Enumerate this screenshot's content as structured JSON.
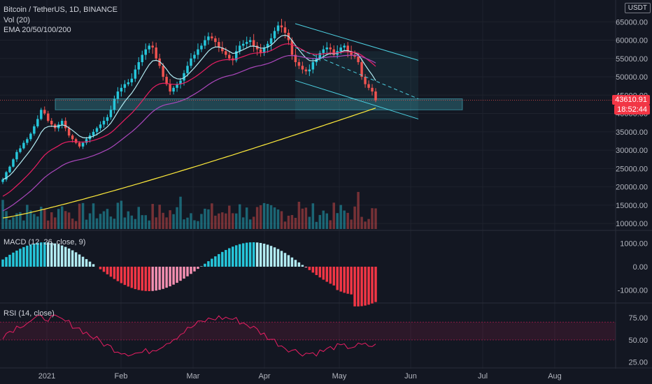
{
  "header": {
    "symbol": "Bitcoin / TetherUS, 1D, BINANCE",
    "vol": "Vol (20)",
    "ema": "EMA 20/50/100/200",
    "macd": "MACD (12, 26, close, 9)",
    "rsi": "RSI (14, close)",
    "currency": "USDT"
  },
  "price_tag": {
    "value": "43610.91",
    "countdown": "18:52:44"
  },
  "colors": {
    "background": "#131722",
    "up": "#26c6da",
    "down": "#ef5350",
    "ema20": "#b2ebf2",
    "ema50": "#e91e63",
    "ema100": "#ab47bc",
    "ema200": "#ffeb3b",
    "channel": "#4dd0e1",
    "rsi": "#e91e63"
  },
  "chart_data": [
    {
      "type": "candlestick",
      "title": "Bitcoin / TetherUS, 1D, BINANCE",
      "x_ticks": [
        "2021",
        "Feb",
        "Mar",
        "Apr",
        "May",
        "Jun",
        "Jul",
        "Aug"
      ],
      "y_ticks": [
        "65000.00",
        "60000.00",
        "55000.00",
        "50000.00",
        "45000.00",
        "40000.00",
        "35000.00",
        "30000.00",
        "25000.00",
        "20000.00",
        "15000.00",
        "10000.00"
      ],
      "ylim": [
        8500,
        70000
      ],
      "closes": [
        22000,
        24000,
        25500,
        27500,
        29500,
        30500,
        32000,
        33000,
        34500,
        36500,
        38500,
        41000,
        40000,
        38000,
        37000,
        36000,
        37000,
        38000,
        36000,
        34000,
        33000,
        32000,
        31000,
        32000,
        33000,
        34000,
        35000,
        36000,
        37000,
        38000,
        39000,
        41000,
        44000,
        46000,
        47000,
        48000,
        48500,
        49500,
        52000,
        54000,
        56000,
        57500,
        58500,
        58000,
        55000,
        53000,
        50000,
        48000,
        46000,
        47000,
        48000,
        49000,
        51000,
        53000,
        55000,
        56000,
        57500,
        58500,
        60000,
        61000,
        60500,
        59500,
        58000,
        57000,
        56000,
        55000,
        54500,
        57000,
        58500,
        59000,
        59500,
        60000,
        58500,
        57500,
        56500,
        58000,
        59000,
        60500,
        62500,
        64000,
        63500,
        62000,
        60000,
        56000,
        54000,
        53000,
        52000,
        51500,
        52000,
        54000,
        55000,
        56500,
        57500,
        58000,
        57500,
        56000,
        57000,
        58000,
        58500,
        57000,
        56000,
        55500,
        54000,
        50000,
        48000,
        47000,
        46000,
        43610.91
      ],
      "series": [
        {
          "name": "EMA 20",
          "style": "line"
        },
        {
          "name": "EMA 50",
          "style": "line"
        },
        {
          "name": "EMA 100",
          "style": "line"
        },
        {
          "name": "EMA 200",
          "style": "line"
        }
      ],
      "support_zone": [
        41000,
        44000
      ],
      "channel": {
        "upper": [
          64500,
          54500
        ],
        "middle": [
          58000,
          44000
        ],
        "lower": [
          49000,
          38500
        ]
      }
    },
    {
      "type": "bar",
      "title": "MACD (12, 26, close, 9)",
      "y_ticks": [
        "1000.00",
        "0.00",
        "-1000.00"
      ],
      "ylim": [
        -1500,
        1500
      ]
    },
    {
      "type": "line",
      "title": "RSI (14, close)",
      "y_ticks": [
        "75.00",
        "50.00",
        "25.00"
      ],
      "ylim": [
        20,
        90
      ],
      "band": [
        50,
        70
      ]
    }
  ]
}
